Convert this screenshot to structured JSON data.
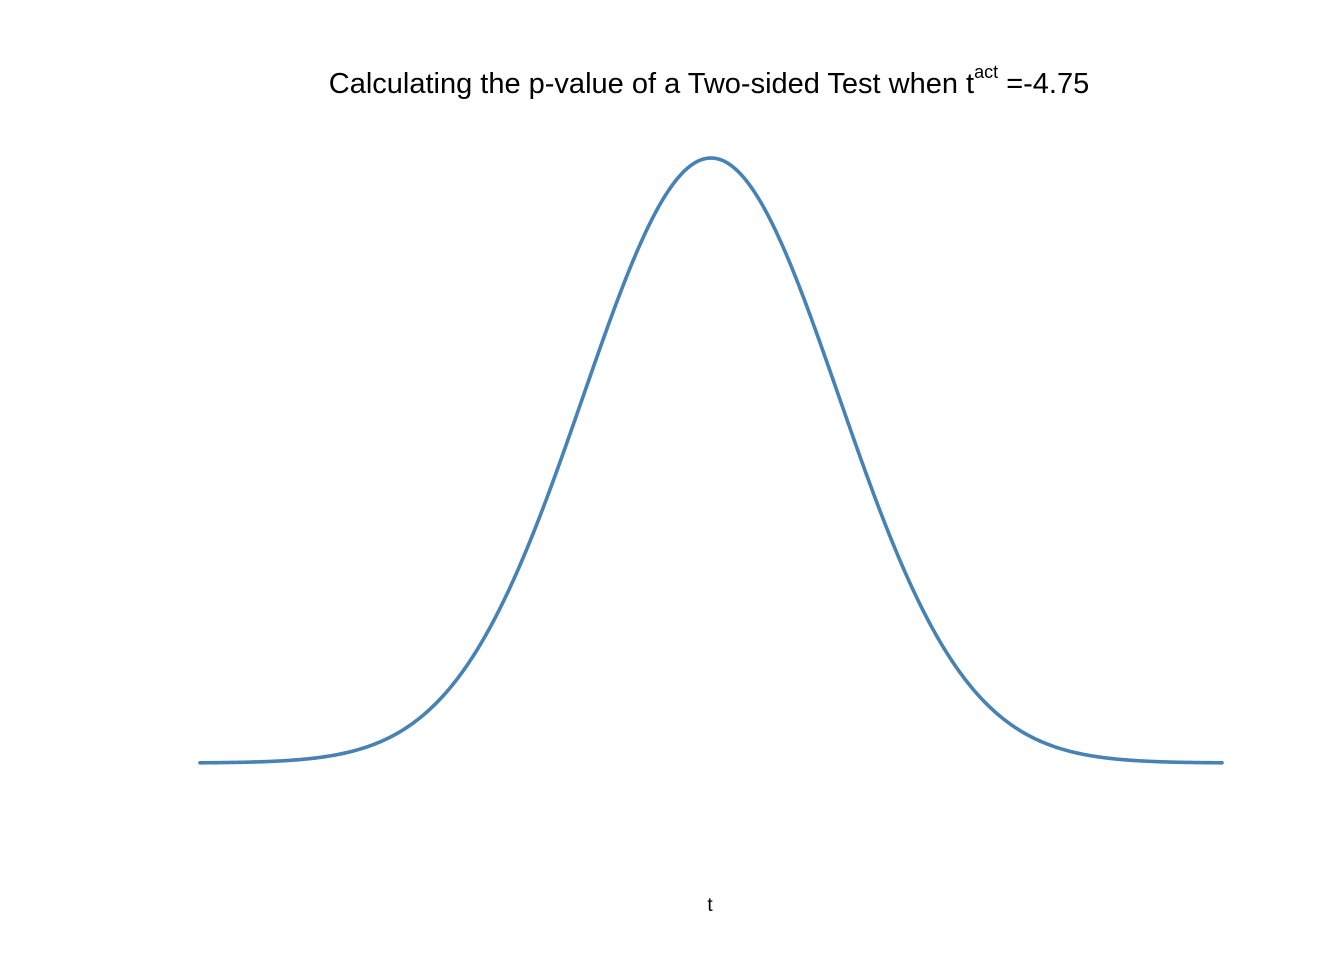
{
  "chart_data": {
    "type": "line",
    "title": {
      "prefix": "Calculating the p-value of a Two-sided Test when t",
      "superscript": "act",
      "suffix": " =-4.75"
    },
    "xlabel": "t",
    "ylabel": "",
    "xlim": [
      -4,
      4
    ],
    "ylim": [
      0,
      0.4
    ],
    "axes_visible": false,
    "grid": false,
    "series": [
      {
        "function": "standard_normal_density",
        "mean": 0,
        "sd": 1,
        "x_range": [
          -4,
          4
        ],
        "color": "#4682b4"
      }
    ]
  },
  "colors": {
    "curve": "#4682b4",
    "background": "#ffffff",
    "text": "#000000"
  }
}
